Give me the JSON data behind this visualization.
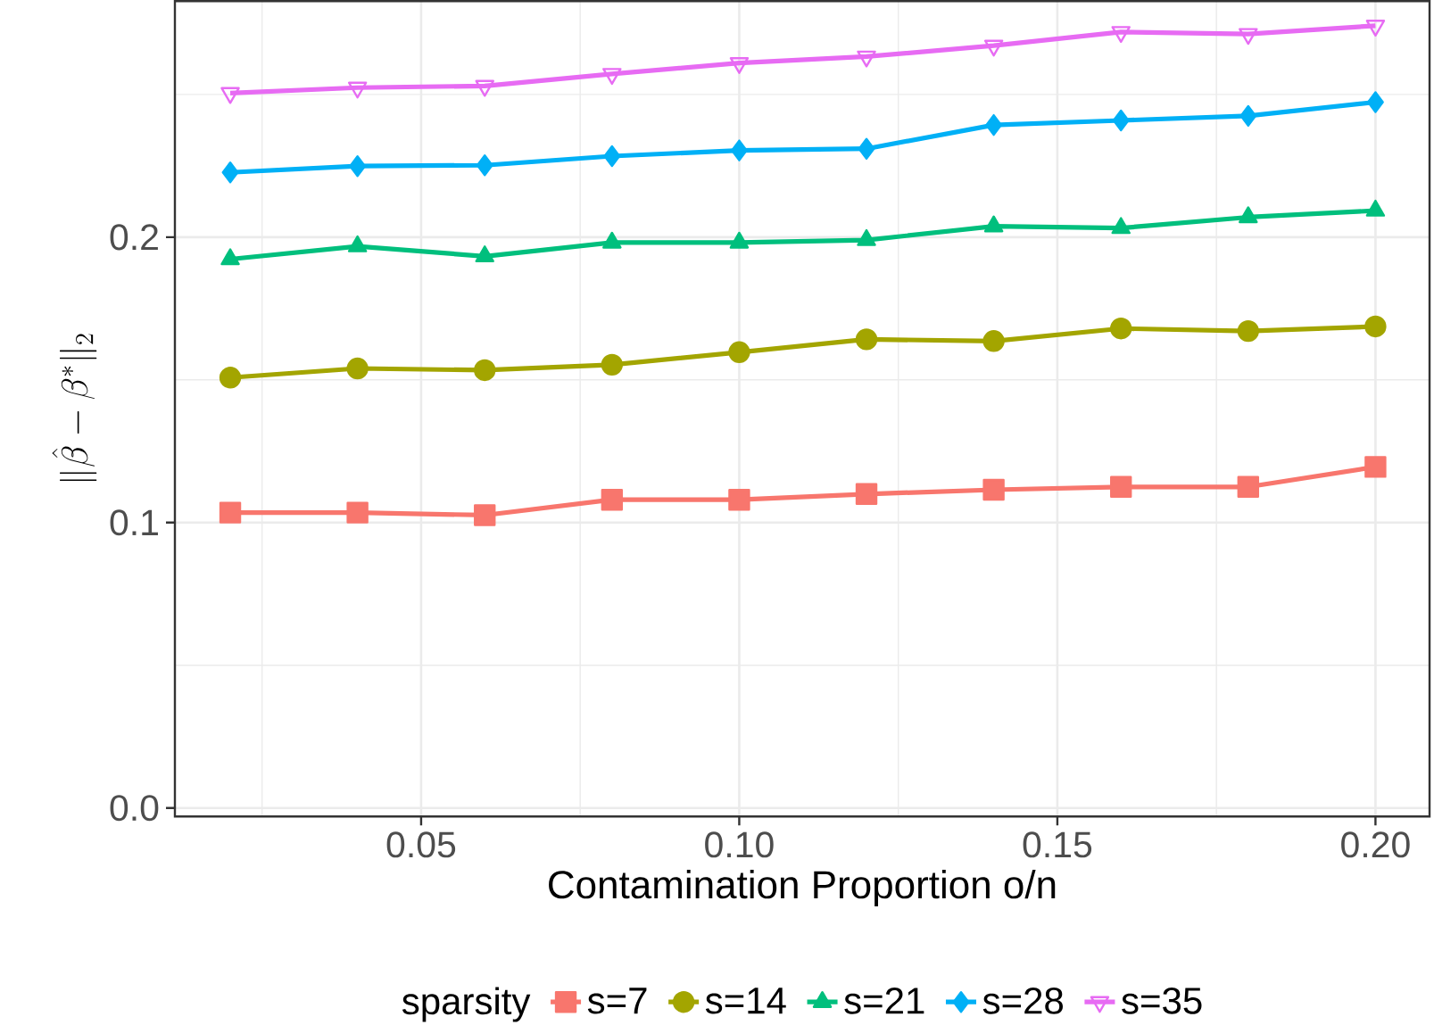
{
  "chart_data": {
    "type": "line",
    "xlabel": "Contamination Proportion o/n",
    "ylabel": "\\|\\hat{\\beta}-\\beta^{*}\\|_2",
    "legend_title": "sparsity",
    "x": [
      0.02,
      0.04,
      0.06,
      0.08,
      0.1,
      0.12,
      0.14,
      0.16,
      0.18,
      0.2
    ],
    "series": [
      {
        "name": "s=7",
        "color": "#f8766d",
        "marker": "square",
        "values": [
          0.1035,
          0.1035,
          0.1026,
          0.108,
          0.108,
          0.11,
          0.1115,
          0.1125,
          0.1125,
          0.1195
        ]
      },
      {
        "name": "s=14",
        "color": "#a3a500",
        "marker": "circle",
        "values": [
          0.1508,
          0.154,
          0.1534,
          0.1553,
          0.1597,
          0.1642,
          0.1636,
          0.168,
          0.1671,
          0.1687
        ]
      },
      {
        "name": "s=21",
        "color": "#00bf7d",
        "marker": "triangle",
        "values": [
          0.1923,
          0.1968,
          0.1933,
          0.1981,
          0.1981,
          0.199,
          0.2038,
          0.2032,
          0.207,
          0.2093
        ]
      },
      {
        "name": "s=28",
        "color": "#00b0f6",
        "marker": "diamond",
        "values": [
          0.2227,
          0.2249,
          0.2252,
          0.2284,
          0.2304,
          0.231,
          0.2393,
          0.2409,
          0.2425,
          0.2473
        ]
      },
      {
        "name": "s=35",
        "color": "#e76bf3",
        "marker": "triangle-down",
        "values": [
          0.2505,
          0.2524,
          0.253,
          0.2572,
          0.261,
          0.2633,
          0.2671,
          0.2719,
          0.2712,
          0.2741
        ]
      }
    ],
    "xlim": [
      0.0113,
      0.2085
    ],
    "ylim": [
      -0.003,
      0.2827
    ],
    "xticks": [
      0.05,
      {
        "value": 0.1,
        "label": "0.10"
      },
      0.15,
      {
        "value": 0.2,
        "label": "0.20"
      }
    ],
    "yticks": [
      {
        "value": 0,
        "label": "0.0"
      },
      0.1,
      0.2
    ],
    "grid": true,
    "legend": "bottom",
    "line_style": "solid"
  }
}
